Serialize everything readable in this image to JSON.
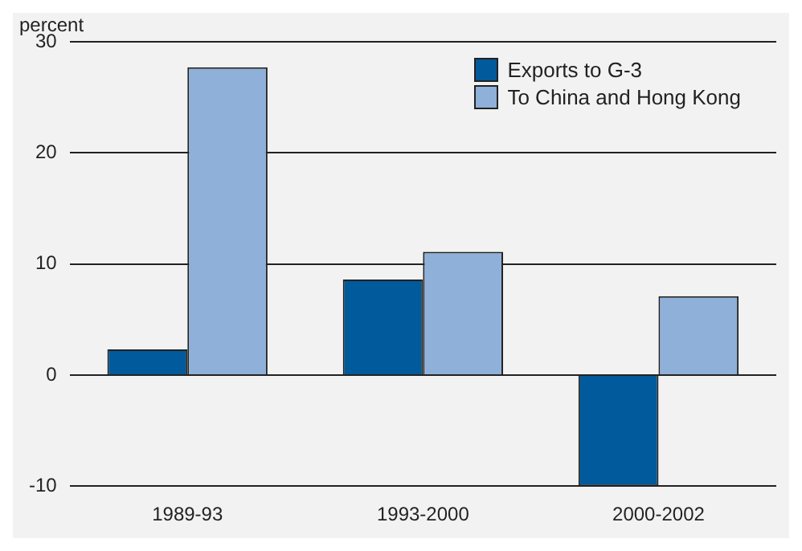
{
  "chart_data": {
    "type": "bar",
    "ylabel": "percent",
    "categories": [
      "1989-93",
      "1993-2000",
      "2000-2002"
    ],
    "series": [
      {
        "name": "Exports to G-3",
        "color": "#005a9c",
        "values": [
          2.3,
          8.6,
          -10.0
        ]
      },
      {
        "name": "To China and Hong Kong",
        "color": "#8fb0d8",
        "values": [
          27.7,
          11.1,
          7.1
        ]
      }
    ],
    "ylim": [
      -10,
      30
    ],
    "yticks": [
      -10,
      0,
      10,
      20,
      30
    ],
    "grid": "y",
    "legend": "top right"
  }
}
